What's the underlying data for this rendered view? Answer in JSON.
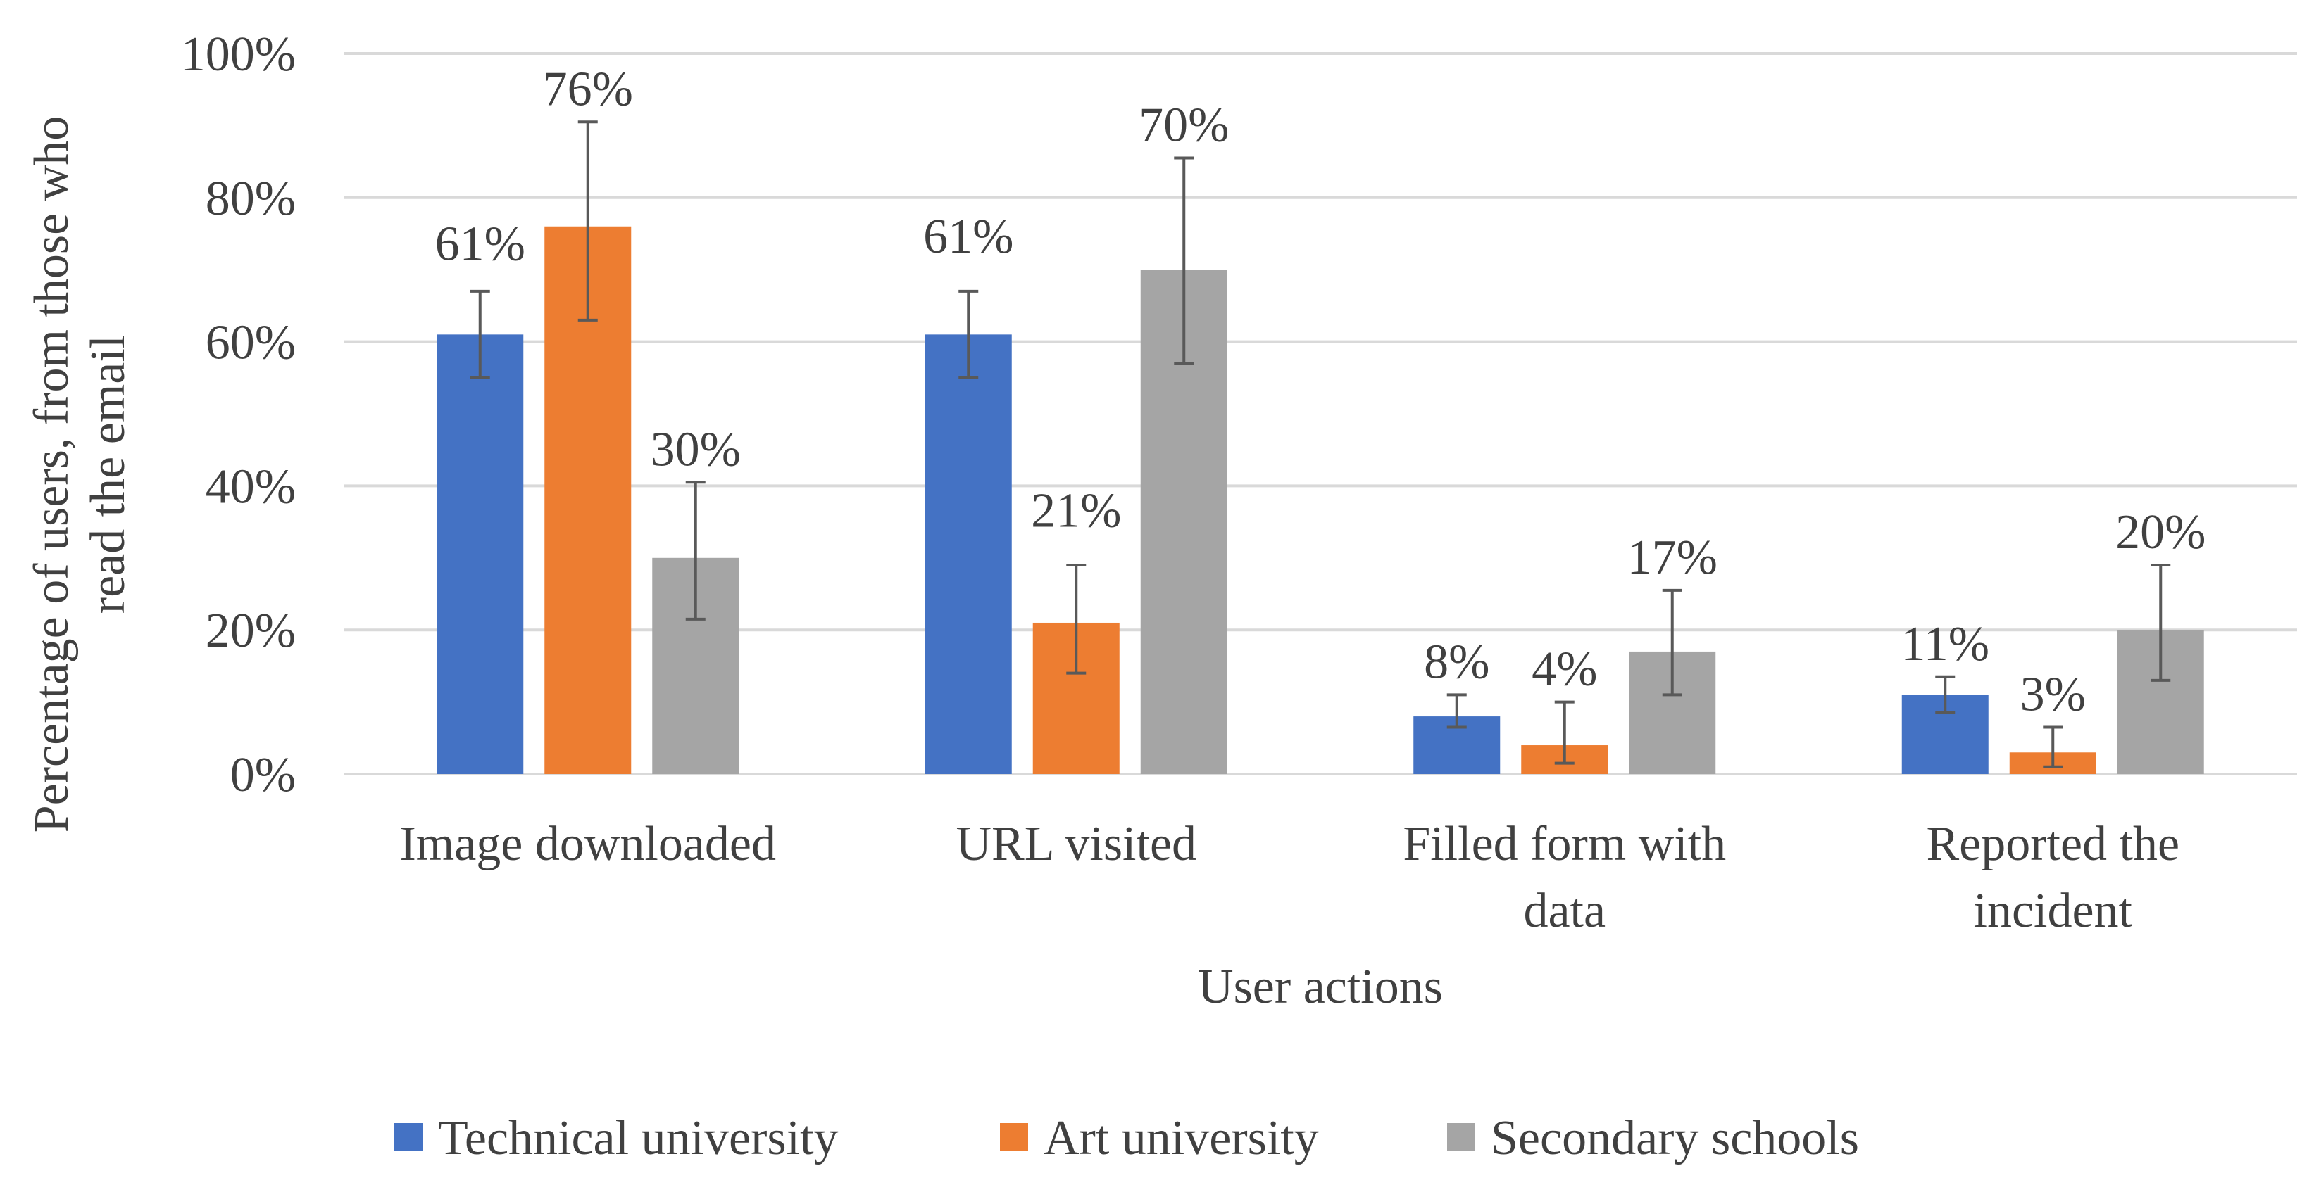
{
  "chart_data": {
    "type": "bar",
    "title": "",
    "xlabel": "User actions",
    "ylabel": [
      "Percentage of users, from those who",
      "read the email"
    ],
    "ylim": [
      0,
      100
    ],
    "yticks": [
      0,
      20,
      40,
      60,
      80,
      100
    ],
    "ytick_labels": [
      "0%",
      "20%",
      "40%",
      "60%",
      "80%",
      "100%"
    ],
    "grid": true,
    "legend_position": "bottom",
    "categories": [
      [
        "Image downloaded"
      ],
      [
        "URL visited"
      ],
      [
        "Filled form with",
        "data"
      ],
      [
        "Reported the",
        "incident"
      ]
    ],
    "series": [
      {
        "name": "Technical university",
        "color": "#4472C4",
        "values": [
          61,
          61,
          8,
          11
        ],
        "labels": [
          "61%",
          "61%",
          "8%",
          "11%"
        ],
        "err_low": [
          55,
          55,
          6.5,
          8.5
        ],
        "err_high": [
          67,
          67,
          11,
          13.5
        ],
        "label_anchor": [
          69,
          70,
          11,
          13.5
        ]
      },
      {
        "name": "Art university",
        "color": "#ED7D31",
        "values": [
          76,
          21,
          4,
          3
        ],
        "labels": [
          "76%",
          "21%",
          "4%",
          "3%"
        ],
        "err_low": [
          63,
          14,
          1.5,
          1
        ],
        "err_high": [
          90.5,
          29,
          10,
          6.5
        ],
        "label_anchor": [
          90.5,
          32,
          10,
          6.5
        ]
      },
      {
        "name": "Secondary schools",
        "color": "#A5A5A5",
        "values": [
          30,
          70,
          17,
          20
        ],
        "labels": [
          "30%",
          "70%",
          "17%",
          "20%"
        ],
        "err_low": [
          21.5,
          57,
          11,
          13
        ],
        "err_high": [
          40.5,
          85.5,
          25.5,
          29
        ],
        "label_anchor": [
          40.5,
          85.5,
          25.5,
          29
        ]
      }
    ]
  }
}
